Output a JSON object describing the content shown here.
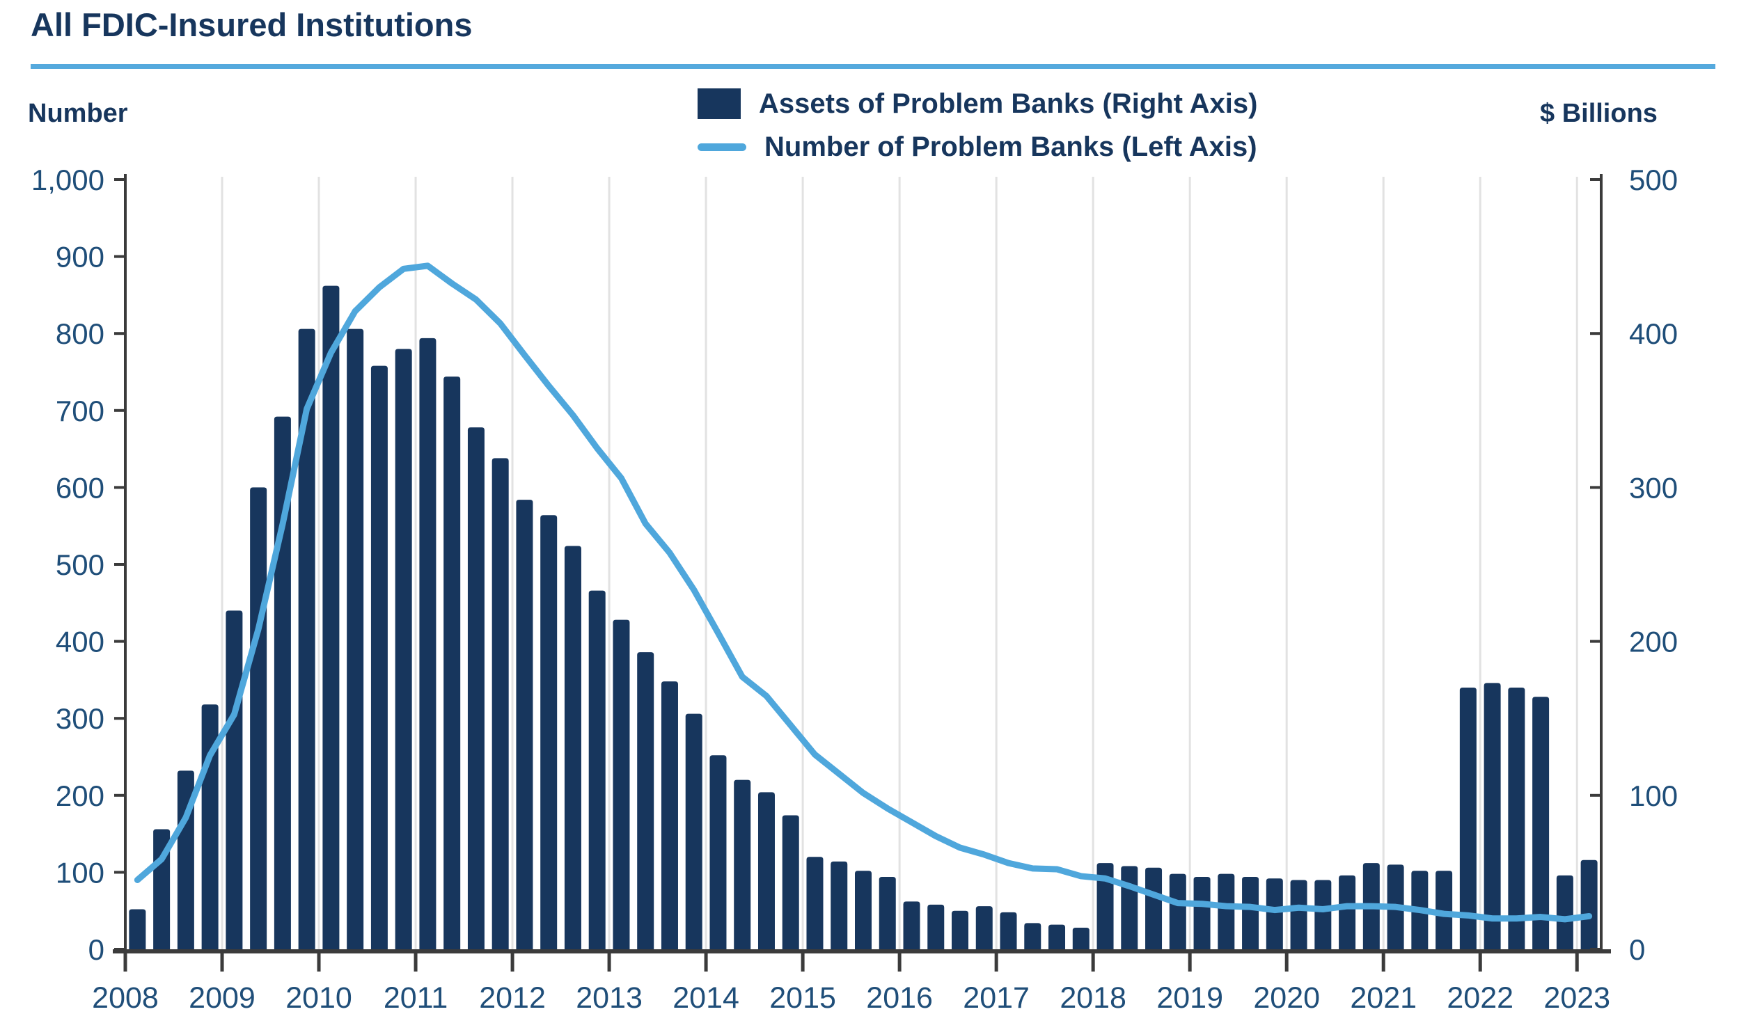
{
  "header": {
    "title": "All FDIC-Insured Institutions"
  },
  "axes": {
    "left_unit": "Number",
    "right_unit": "$ Billions",
    "left_ticks": [
      "0",
      "100",
      "200",
      "300",
      "400",
      "500",
      "600",
      "700",
      "800",
      "900",
      "1,000"
    ],
    "right_ticks": [
      "0",
      "100",
      "200",
      "300",
      "400",
      "500"
    ],
    "years": [
      "2008",
      "2009",
      "2010",
      "2011",
      "2012",
      "2013",
      "2014",
      "2015",
      "2016",
      "2017",
      "2018",
      "2019",
      "2020",
      "2021",
      "2022",
      "2023"
    ]
  },
  "legend": {
    "bar_label": "Assets of Problem Banks (Right Axis)",
    "line_label": "Number of Problem Banks (Left Axis)"
  },
  "colors": {
    "bar": "#17365D",
    "line": "#4FA7DC",
    "grid": "#E2E2E2",
    "spine": "#3B3B3B",
    "tick": "#3B3B3B",
    "axis_text": "#1F4E79",
    "title_text": "#17365D",
    "rule": "#55A9DD"
  },
  "chart_data": {
    "type": "bar+line",
    "title": "All FDIC-Insured Institutions",
    "grid": "vertical-yearly",
    "legend_position": "top-center",
    "left_axis": {
      "label": "Number",
      "range": [
        0,
        1000
      ],
      "tick_step": 100
    },
    "right_axis": {
      "label": "$ Billions",
      "range": [
        0,
        500
      ],
      "tick_step": 100
    },
    "categories": [
      "2008 Q1",
      "2008 Q2",
      "2008 Q3",
      "2008 Q4",
      "2009 Q1",
      "2009 Q2",
      "2009 Q3",
      "2009 Q4",
      "2010 Q1",
      "2010 Q2",
      "2010 Q3",
      "2010 Q4",
      "2011 Q1",
      "2011 Q2",
      "2011 Q3",
      "2011 Q4",
      "2012 Q1",
      "2012 Q2",
      "2012 Q3",
      "2012 Q4",
      "2013 Q1",
      "2013 Q2",
      "2013 Q3",
      "2013 Q4",
      "2014 Q1",
      "2014 Q2",
      "2014 Q3",
      "2014 Q4",
      "2015 Q1",
      "2015 Q2",
      "2015 Q3",
      "2015 Q4",
      "2016 Q1",
      "2016 Q2",
      "2016 Q3",
      "2016 Q4",
      "2017 Q1",
      "2017 Q2",
      "2017 Q3",
      "2017 Q4",
      "2018 Q1",
      "2018 Q2",
      "2018 Q3",
      "2018 Q4",
      "2019 Q1",
      "2019 Q2",
      "2019 Q3",
      "2019 Q4",
      "2020 Q1",
      "2020 Q2",
      "2020 Q3",
      "2020 Q4",
      "2021 Q1",
      "2021 Q2",
      "2021 Q3",
      "2021 Q4",
      "2022 Q1",
      "2022 Q2",
      "2022 Q3",
      "2022 Q4",
      "2023 Q1"
    ],
    "series": [
      {
        "name": "Assets of Problem Banks (Right Axis)",
        "type": "bar",
        "axis": "right",
        "unit": "$ Billions",
        "values": [
          26,
          78,
          116,
          159,
          220,
          300,
          346,
          403,
          431,
          403,
          379,
          390,
          397,
          372,
          339,
          319,
          292,
          282,
          262,
          233,
          214,
          193,
          174,
          153,
          126,
          110,
          102,
          87,
          60,
          57,
          51,
          47,
          31,
          29,
          25,
          28,
          24,
          17,
          16,
          14,
          56,
          54,
          53,
          49,
          47,
          49,
          47,
          46,
          45,
          45,
          48,
          56,
          55,
          51,
          51,
          170,
          173,
          170,
          164,
          48,
          58
        ]
      },
      {
        "name": "Number of Problem Banks (Left Axis)",
        "type": "line",
        "axis": "left",
        "unit": "Number",
        "values": [
          90,
          117,
          171,
          252,
          305,
          416,
          552,
          702,
          775,
          829,
          860,
          884,
          888,
          865,
          844,
          813,
          772,
          732,
          694,
          651,
          612,
          553,
          515,
          467,
          411,
          354,
          329,
          291,
          253,
          228,
          203,
          183,
          165,
          147,
          132,
          123,
          112,
          105,
          104,
          95,
          92,
          82,
          71,
          60,
          59,
          56,
          55,
          51,
          54,
          52,
          56,
          56,
          55,
          51,
          46,
          44,
          40,
          40,
          42,
          39,
          43
        ]
      }
    ],
    "x_tick_labels": [
      "2008",
      "2009",
      "2010",
      "2011",
      "2012",
      "2013",
      "2014",
      "2015",
      "2016",
      "2017",
      "2018",
      "2019",
      "2020",
      "2021",
      "2022",
      "2023"
    ]
  }
}
